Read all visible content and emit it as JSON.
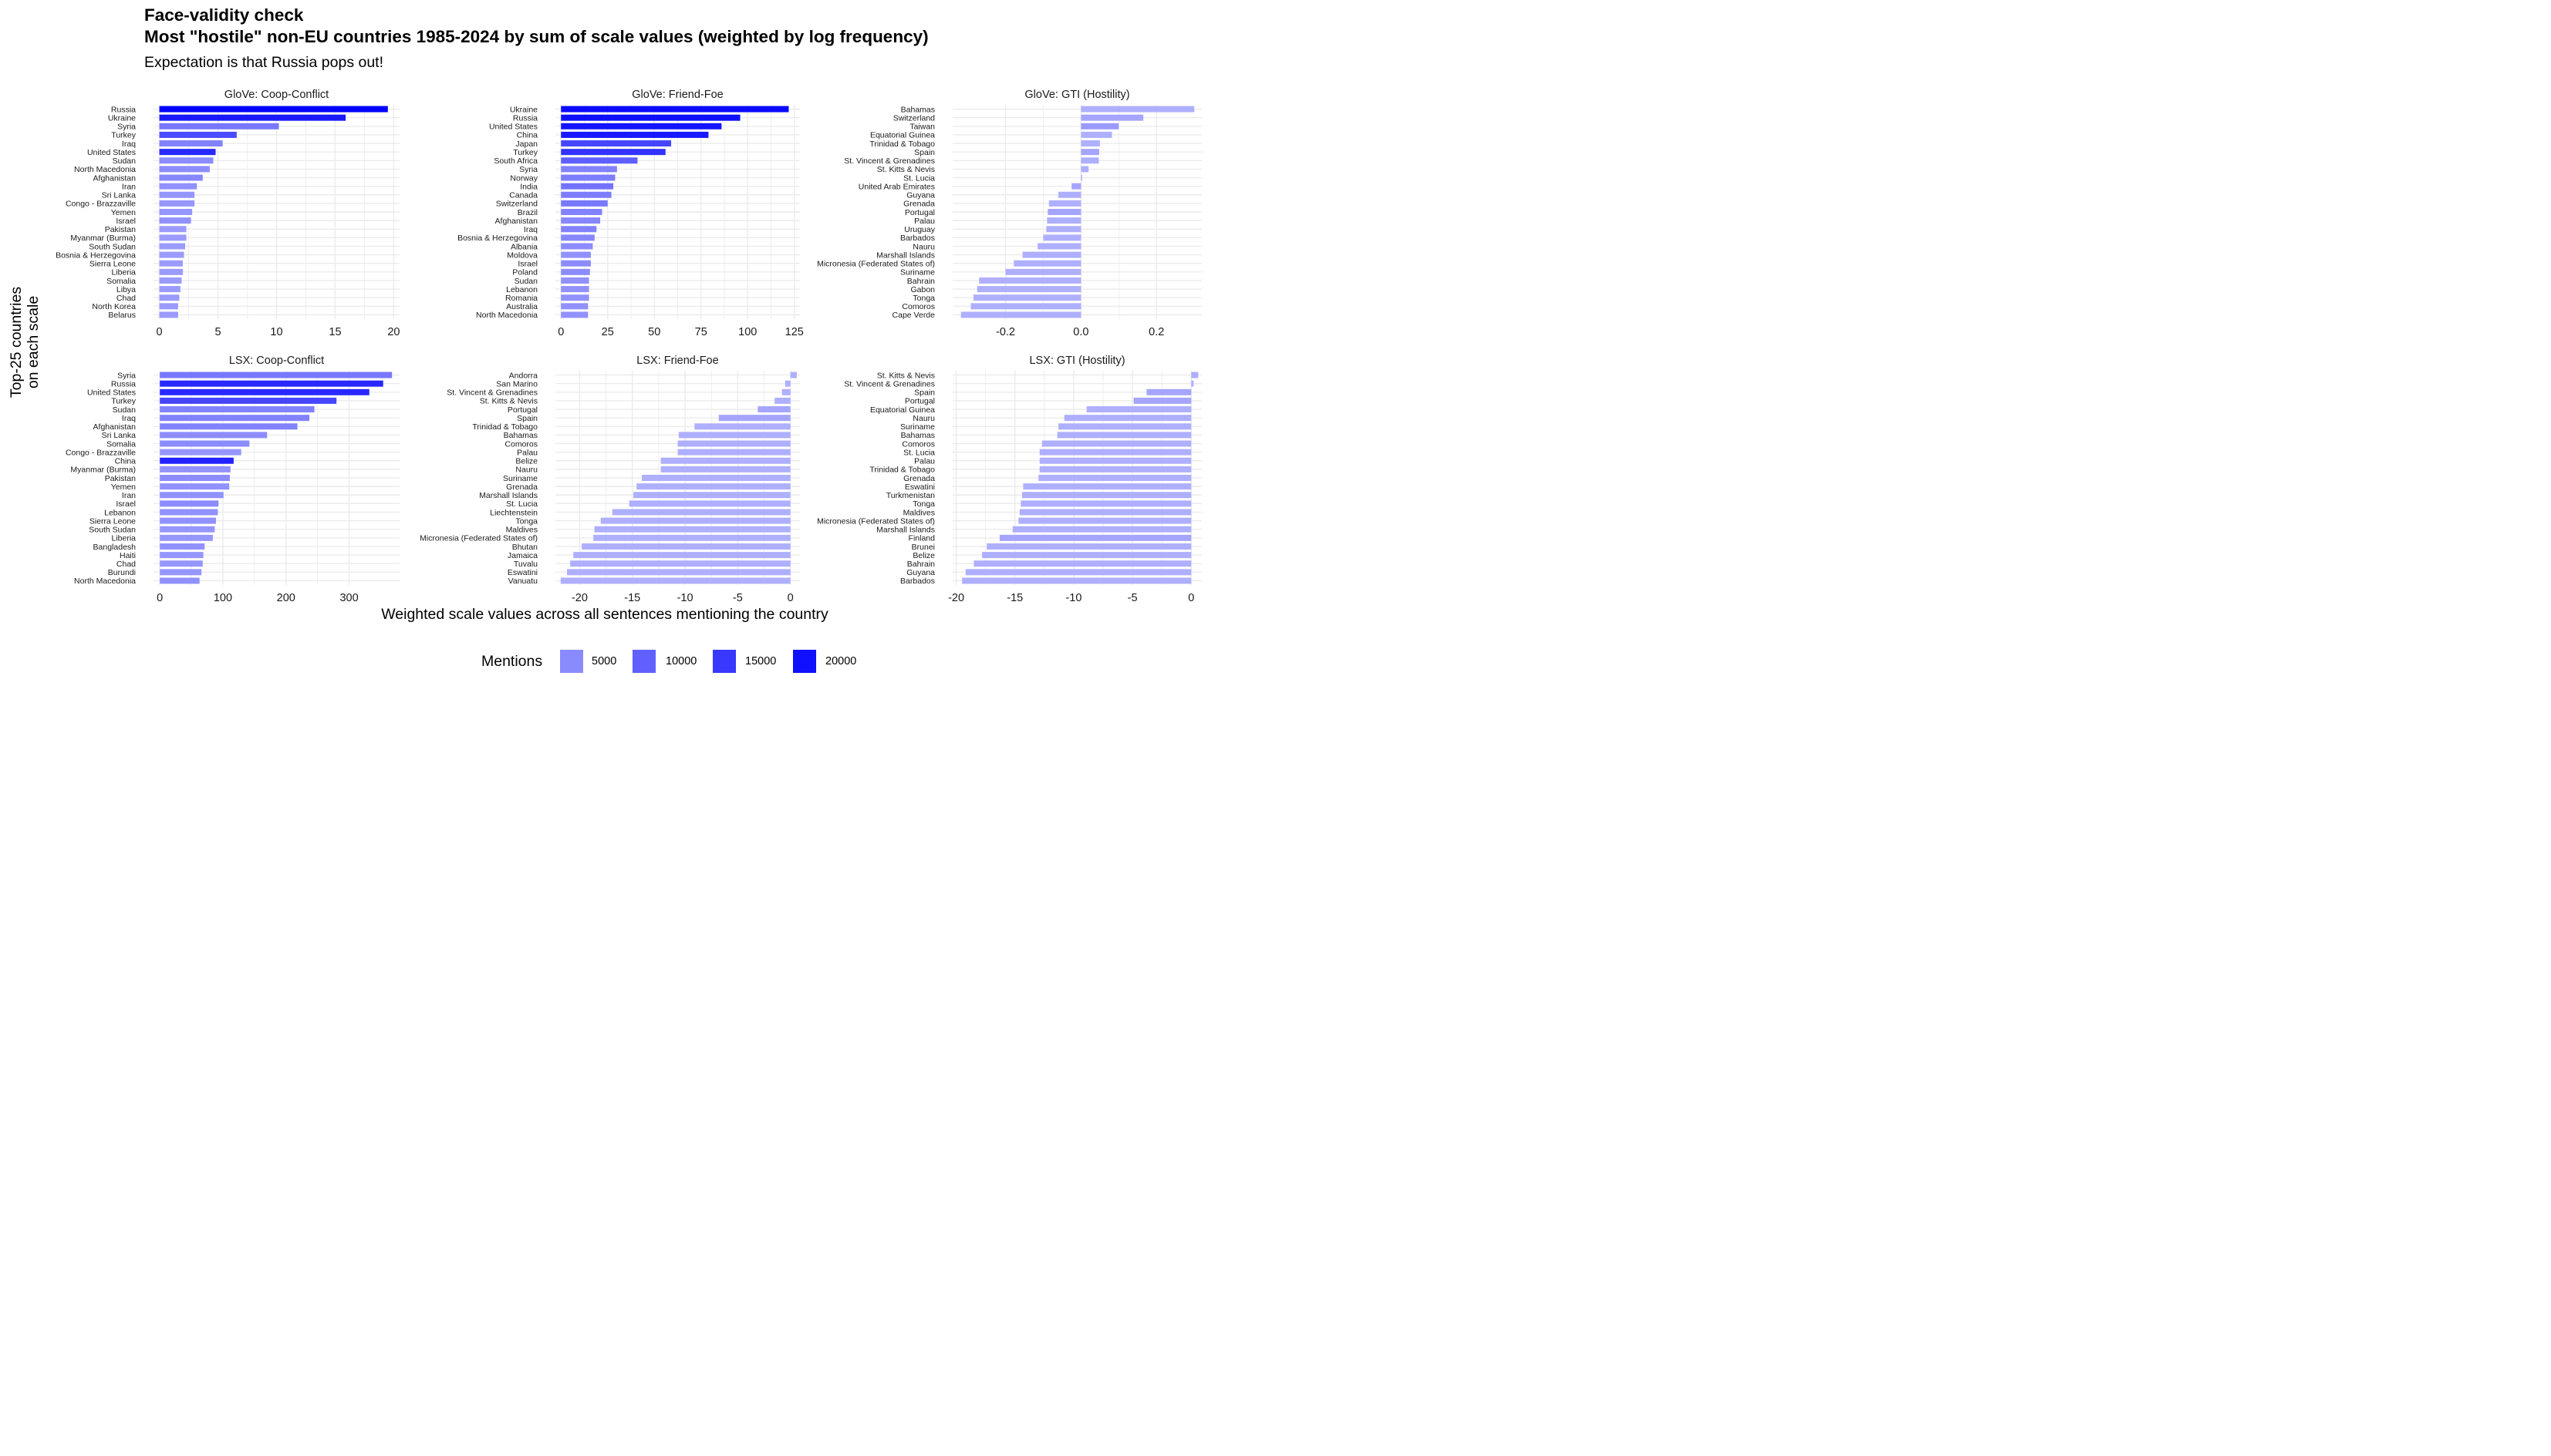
{
  "title_line1": "Face-validity check",
  "title_line2": "Most \"hostile\" non-EU countries 1985-2024 by sum of scale values (weighted by log frequency)",
  "subtitle": "Expectation is that Russia pops out!",
  "y_axis_label_line1": "Top-25 countries",
  "y_axis_label_line2": "on each scale",
  "x_axis_label": "Weighted scale values across all sentences mentioning the country",
  "legend": {
    "title": "Mentions",
    "entries": [
      {
        "label": "5000",
        "color": "#8a8aff"
      },
      {
        "label": "10000",
        "color": "#6060ff"
      },
      {
        "label": "15000",
        "color": "#3838ff"
      },
      {
        "label": "20000",
        "color": "#1010ff"
      }
    ]
  },
  "colors": {
    "grid": "#ebebeb",
    "mentions_low": "#b4b4ff",
    "mentions_high": "#0000ff"
  },
  "chart_data": [
    {
      "type": "bar",
      "orientation": "horizontal",
      "title": "GloVe: Coop-Conflict",
      "xlim": [
        -0.5,
        20.5
      ],
      "xticks": [
        0,
        5,
        10,
        15,
        20
      ],
      "categories": [
        "Russia",
        "Ukraine",
        "Syria",
        "Turkey",
        "Iraq",
        "United States",
        "Sudan",
        "North Macedonia",
        "Afghanistan",
        "Iran",
        "Sri Lanka",
        "Congo - Brazzaville",
        "Yemen",
        "Israel",
        "Pakistan",
        "Myanmar (Burma)",
        "South Sudan",
        "Bosnia & Herzegovina",
        "Sierra Leone",
        "Liberia",
        "Somalia",
        "Libya",
        "Chad",
        "North Korea",
        "Belarus"
      ],
      "values": [
        19.5,
        15.9,
        10.2,
        6.6,
        5.4,
        4.8,
        4.6,
        4.3,
        3.7,
        3.2,
        3.0,
        3.0,
        2.8,
        2.7,
        2.3,
        2.3,
        2.2,
        2.1,
        2.0,
        2.0,
        1.9,
        1.8,
        1.7,
        1.6,
        1.6
      ],
      "mentions": [
        21000,
        18500,
        9000,
        13500,
        8000,
        17000,
        7000,
        7000,
        7500,
        6500,
        6000,
        6000,
        6000,
        6500,
        5500,
        5500,
        5500,
        5500,
        5500,
        5500,
        5500,
        5500,
        5500,
        5500,
        5500
      ]
    },
    {
      "type": "bar",
      "orientation": "horizontal",
      "title": "GloVe: Friend-Foe",
      "xlim": [
        -3,
        128
      ],
      "xticks": [
        0,
        25,
        50,
        75,
        100,
        125
      ],
      "categories": [
        "Ukraine",
        "Russia",
        "United States",
        "China",
        "Japan",
        "Turkey",
        "South Africa",
        "Syria",
        "Norway",
        "India",
        "Canada",
        "Switzerland",
        "Brazil",
        "Afghanistan",
        "Iraq",
        "Bosnia & Herzegovina",
        "Albania",
        "Moldova",
        "Israel",
        "Poland",
        "Sudan",
        "Lebanon",
        "Romania",
        "Australia",
        "North Macedonia"
      ],
      "values": [
        122,
        96,
        86,
        79,
        59,
        56,
        41,
        30,
        29,
        28,
        27,
        25,
        22,
        21,
        19,
        18,
        17,
        16,
        16,
        15.5,
        15,
        15,
        15,
        14.5,
        14.5
      ],
      "mentions": [
        20000,
        19500,
        19000,
        18500,
        14000,
        16000,
        11500,
        8000,
        8500,
        9500,
        8500,
        9000,
        8000,
        7500,
        8000,
        7500,
        7000,
        6500,
        7000,
        7000,
        6500,
        6500,
        6500,
        6500,
        6500
      ]
    },
    {
      "type": "bar",
      "orientation": "horizontal",
      "title": "GloVe: GTI (Hostility)",
      "xlim": [
        -0.34,
        0.32
      ],
      "xticks": [
        -0.2,
        0.0,
        0.2
      ],
      "categories": [
        "Bahamas",
        "Switzerland",
        "Taiwan",
        "Equatorial Guinea",
        "Trinidad & Tobago",
        "Spain",
        "St. Vincent & Grenadines",
        "St. Kitts & Nevis",
        "St. Lucia",
        "United Arab Emirates",
        "Guyana",
        "Grenada",
        "Portugal",
        "Palau",
        "Uruguay",
        "Barbados",
        "Nauru",
        "Marshall Islands",
        "Micronesia (Federated States of)",
        "Suriname",
        "Bahrain",
        "Gabon",
        "Tonga",
        "Comoros",
        "Cape Verde"
      ],
      "values": [
        0.3,
        0.165,
        0.1,
        0.082,
        0.05,
        0.048,
        0.047,
        0.02,
        0.003,
        -0.025,
        -0.06,
        -0.085,
        -0.088,
        -0.09,
        -0.092,
        -0.1,
        -0.115,
        -0.155,
        -0.178,
        -0.2,
        -0.27,
        -0.275,
        -0.285,
        -0.292,
        -0.318
      ],
      "mentions": [
        3500,
        4500,
        5500,
        3500,
        3500,
        4500,
        3500,
        3500,
        3500,
        4500,
        3500,
        3500,
        4500,
        3500,
        3500,
        3500,
        3500,
        3500,
        3500,
        3500,
        3500,
        3500,
        3500,
        3500,
        3500
      ]
    },
    {
      "type": "bar",
      "orientation": "horizontal",
      "title": "LSX: Coop-Conflict",
      "xlim": [
        -10,
        380
      ],
      "xticks": [
        0,
        100,
        200,
        300
      ],
      "categories": [
        "Syria",
        "Russia",
        "United States",
        "Turkey",
        "Sudan",
        "Iraq",
        "Afghanistan",
        "Sri Lanka",
        "Somalia",
        "Congo - Brazzaville",
        "China",
        "Myanmar (Burma)",
        "Pakistan",
        "Yemen",
        "Iran",
        "Israel",
        "Lebanon",
        "Sierra Leone",
        "South Sudan",
        "Liberia",
        "Bangladesh",
        "Haiti",
        "Chad",
        "Burundi",
        "North Macedonia"
      ],
      "values": [
        368,
        354,
        332,
        280,
        245,
        237,
        218,
        170,
        142,
        129,
        117,
        112,
        111,
        110,
        101,
        93,
        92,
        89,
        87,
        84,
        71,
        69,
        68,
        66,
        63
      ],
      "mentions": [
        9000,
        17000,
        17000,
        14000,
        8000,
        8000,
        8000,
        7000,
        7000,
        6000,
        17500,
        6500,
        7000,
        6500,
        6500,
        7000,
        6500,
        6500,
        6000,
        6000,
        6500,
        6000,
        6000,
        6000,
        6500
      ]
    },
    {
      "type": "bar",
      "orientation": "horizontal",
      "title": "LSX: Friend-Foe",
      "xlim": [
        -22.3,
        0.9
      ],
      "xticks": [
        -20,
        -15,
        -10,
        -5,
        0
      ],
      "categories": [
        "Andorra",
        "San Marino",
        "St. Vincent & Grenadines",
        "St. Kitts & Nevis",
        "Portugal",
        "Spain",
        "Trinidad & Tobago",
        "Bahamas",
        "Comoros",
        "Palau",
        "Belize",
        "Nauru",
        "Suriname",
        "Grenada",
        "Marshall Islands",
        "St. Lucia",
        "Liechtenstein",
        "Tonga",
        "Maldives",
        "Micronesia (Federated States of)",
        "Bhutan",
        "Jamaica",
        "Tuvalu",
        "Eswatini",
        "Vanuatu"
      ],
      "values": [
        0.6,
        -0.5,
        -0.8,
        -1.5,
        -3.1,
        -6.8,
        -9.1,
        -10.6,
        -10.7,
        -10.7,
        -12.3,
        -12.3,
        -14.1,
        -14.6,
        -14.9,
        -15.3,
        -16.9,
        -18.0,
        -18.6,
        -18.7,
        -19.8,
        -20.6,
        -20.9,
        -21.2,
        -21.8
      ],
      "mentions": [
        3500,
        3500,
        3500,
        3500,
        4500,
        4500,
        3500,
        3500,
        3500,
        3500,
        3500,
        3500,
        3500,
        3500,
        3500,
        3500,
        3500,
        3500,
        3500,
        3500,
        3500,
        3500,
        3500,
        3500,
        3500
      ]
    },
    {
      "type": "bar",
      "orientation": "horizontal",
      "title": "LSX: GTI (Hostility)",
      "xlim": [
        -20.3,
        0.9
      ],
      "xticks": [
        -20,
        -15,
        -10,
        -5,
        0
      ],
      "categories": [
        "St. Kitts & Nevis",
        "St. Vincent & Grenadines",
        "Spain",
        "Portugal",
        "Equatorial Guinea",
        "Nauru",
        "Suriname",
        "Bahamas",
        "Comoros",
        "St. Lucia",
        "Palau",
        "Trinidad & Tobago",
        "Grenada",
        "Eswatini",
        "Turkmenistan",
        "Tonga",
        "Maldives",
        "Micronesia (Federated States of)",
        "Marshall Islands",
        "Finland",
        "Brunei",
        "Belize",
        "Bahrain",
        "Guyana",
        "Barbados"
      ],
      "values": [
        0.6,
        0.2,
        -3.8,
        -4.9,
        -8.9,
        -10.8,
        -11.3,
        -11.4,
        -12.7,
        -12.9,
        -12.9,
        -12.9,
        -13.0,
        -14.3,
        -14.4,
        -14.5,
        -14.6,
        -14.7,
        -15.2,
        -16.3,
        -17.4,
        -17.8,
        -18.5,
        -19.2,
        -19.5
      ],
      "mentions": [
        3500,
        3500,
        4500,
        4500,
        3500,
        3500,
        3500,
        3500,
        3500,
        3500,
        3500,
        3500,
        3500,
        3500,
        3500,
        3500,
        3500,
        3500,
        3500,
        4500,
        3500,
        3500,
        3500,
        3500,
        3500
      ]
    }
  ]
}
